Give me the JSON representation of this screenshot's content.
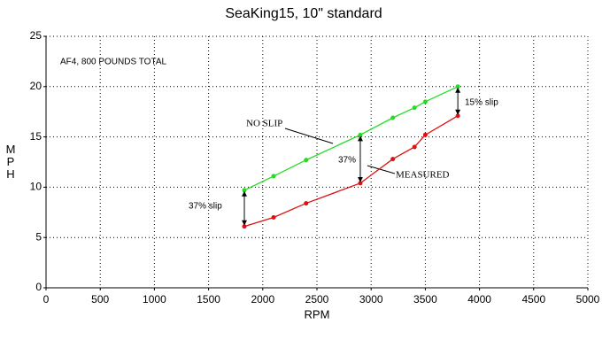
{
  "chart_data": {
    "type": "line",
    "title": "SeaKing15, 10\" standard",
    "xlabel": "RPM",
    "ylabel": "MPH",
    "xlim": [
      0,
      5000
    ],
    "xticks": [
      0,
      500,
      1000,
      1500,
      2000,
      2500,
      3000,
      3500,
      4000,
      4500,
      5000
    ],
    "ylim": [
      0,
      25
    ],
    "yticks": [
      0,
      5,
      10,
      15,
      20,
      25
    ],
    "grid": true,
    "annotations": [
      "AF4, 800 POUNDS TOTAL",
      "NO SLIP",
      "MEASURED",
      "37% slip",
      "37%",
      "15% slip"
    ],
    "x": [
      1830,
      2100,
      2400,
      2900,
      3200,
      3400,
      3500,
      3800
    ],
    "series": [
      {
        "name": "NO SLIP",
        "color": "#22dd22",
        "values": [
          9.7,
          11.1,
          12.7,
          15.2,
          16.9,
          17.9,
          18.5,
          20.0
        ]
      },
      {
        "name": "MEASURED",
        "color": "#dd1111",
        "values": [
          6.1,
          7.0,
          8.4,
          10.4,
          12.8,
          14.0,
          15.2,
          17.1
        ]
      }
    ]
  }
}
